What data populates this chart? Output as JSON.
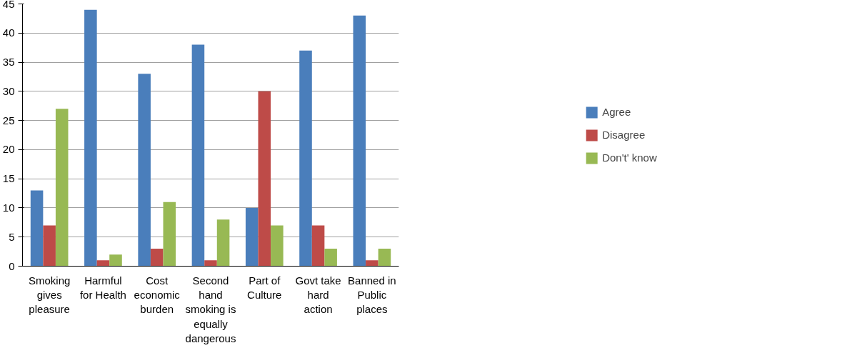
{
  "chart_data": {
    "type": "bar",
    "categories": [
      "Smoking gives pleasure",
      "Harmful for Health",
      "Cost economic burden",
      "Second hand smoking is equally dangerous",
      "Part of Culture",
      "Govt take hard action",
      "Banned in Public places"
    ],
    "series": [
      {
        "name": "Agree",
        "color": "#4a7ebb",
        "values": [
          13,
          44,
          33,
          38,
          10,
          37,
          43
        ]
      },
      {
        "name": "Disagree",
        "color": "#be4b48",
        "values": [
          7,
          1,
          3,
          1,
          30,
          7,
          1
        ]
      },
      {
        "name": "Don't' know",
        "color": "#98b954",
        "values": [
          27,
          2,
          11,
          8,
          7,
          3,
          3
        ]
      }
    ],
    "ylim": [
      0,
      45
    ],
    "yticks": [
      0,
      5,
      10,
      15,
      20,
      25,
      30,
      35,
      40,
      45
    ],
    "grid": "y",
    "legend": "right"
  }
}
